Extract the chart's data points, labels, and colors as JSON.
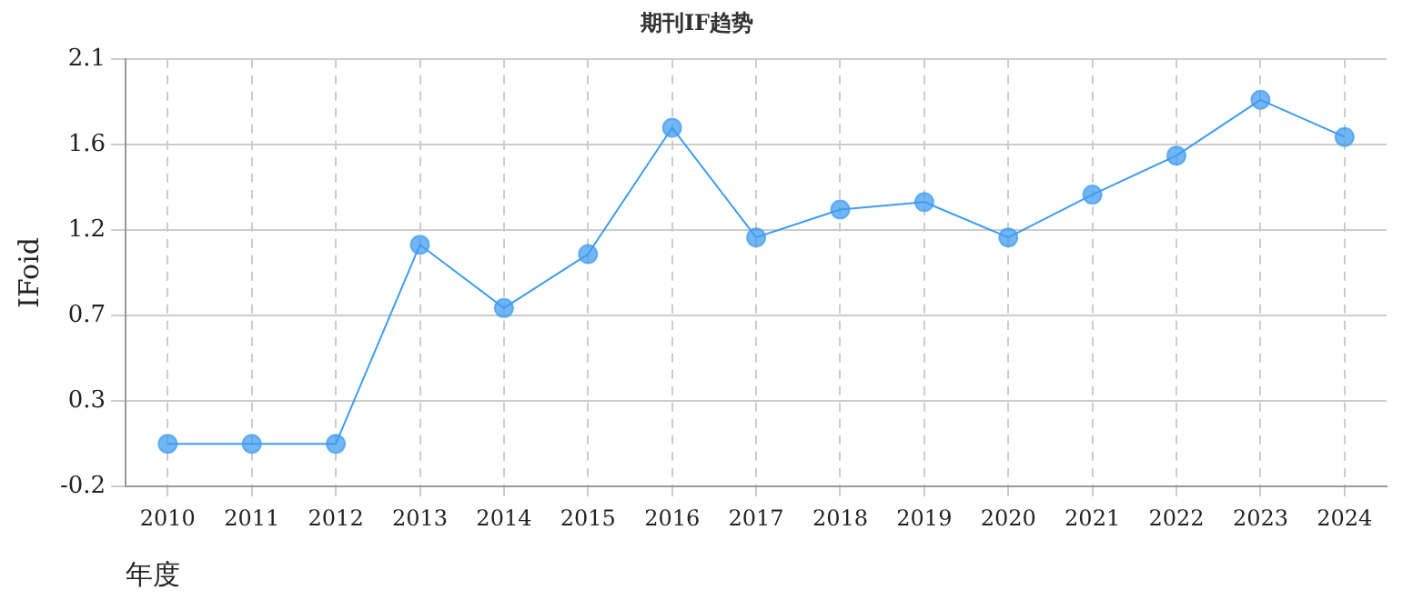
{
  "chart_data": {
    "type": "line",
    "title": "期刊IF趋势",
    "xlabel": "年度",
    "ylabel": "IFoid",
    "categories": [
      "2010",
      "2011",
      "2012",
      "2013",
      "2014",
      "2015",
      "2016",
      "2017",
      "2018",
      "2019",
      "2020",
      "2021",
      "2022",
      "2023",
      "2024"
    ],
    "series": [
      {
        "color": "#3f9cf0",
        "values": [
          0.03,
          0.03,
          0.03,
          1.1,
          0.76,
          1.05,
          1.73,
          1.14,
          1.29,
          1.33,
          1.14,
          1.37,
          1.58,
          1.88,
          1.68
        ]
      }
    ],
    "ylim": [
      -0.2,
      2.1
    ],
    "yticks": [
      -0.2,
      {
        "value": 0.26,
        "label": "0.3"
      },
      {
        "value": 0.72,
        "label": "0.7"
      },
      {
        "value": 1.18,
        "label": "1.2"
      },
      {
        "value": 1.64,
        "label": "1.6"
      },
      2.1
    ],
    "grid": true,
    "legend": false,
    "marker": "circle",
    "line_style": "solid"
  }
}
